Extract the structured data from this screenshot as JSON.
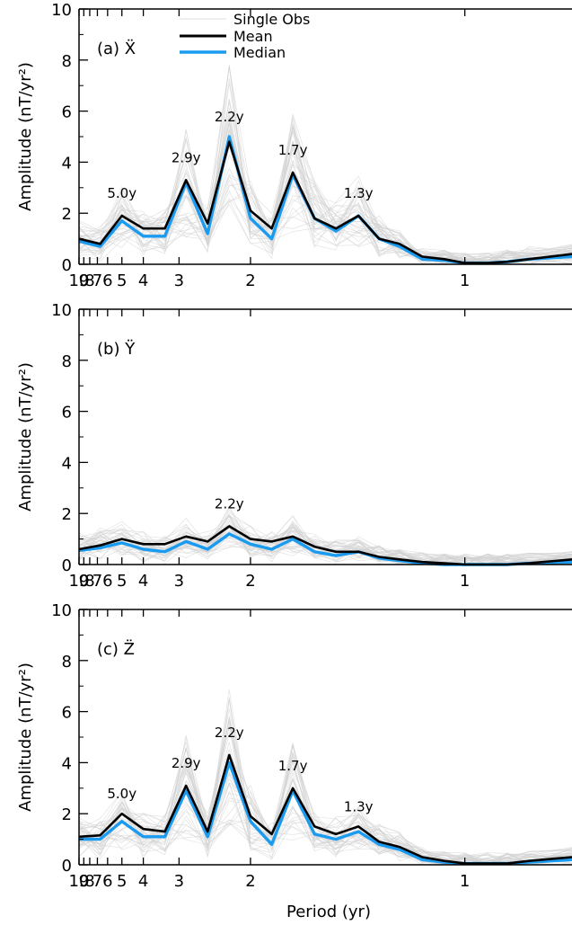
{
  "figure": {
    "xlabel": "Period (yr)",
    "legend": [
      "Single Obs",
      "Mean",
      "Median"
    ]
  },
  "colors": {
    "single": "#d0d0d0",
    "mean": "#000000",
    "median": "#1a9bf0"
  },
  "chart_data": [
    {
      "type": "line",
      "panel_label": "(a) Ẍ",
      "ylabel": "Amplitude (nT/yr²)",
      "xlabel": "",
      "x_scale": "reciprocal (frequency axis labelled in period)",
      "xlim": [
        10,
        0.8
      ],
      "ylim": [
        0,
        10
      ],
      "x_ticks": [
        10,
        9,
        8,
        7,
        6,
        5,
        4,
        3,
        2,
        1
      ],
      "y_ticks": [
        0,
        2,
        4,
        6,
        8,
        10
      ],
      "x": [
        10,
        6.7,
        5.0,
        4.0,
        3.33,
        2.86,
        2.5,
        2.22,
        2.0,
        1.82,
        1.67,
        1.54,
        1.43,
        1.33,
        1.25,
        1.18,
        1.11,
        1.05,
        1.0,
        0.95,
        0.91,
        0.87,
        0.8
      ],
      "series": [
        {
          "name": "Mean",
          "values": [
            1.0,
            0.8,
            1.9,
            1.4,
            1.4,
            3.3,
            1.6,
            4.8,
            2.1,
            1.4,
            3.6,
            1.8,
            1.4,
            1.9,
            1.0,
            0.8,
            0.3,
            0.2,
            0.05,
            0.05,
            0.1,
            0.2,
            0.4
          ]
        },
        {
          "name": "Median",
          "values": [
            0.9,
            0.7,
            1.7,
            1.1,
            1.1,
            3.2,
            1.2,
            5.0,
            1.8,
            1.0,
            3.5,
            1.8,
            1.3,
            1.9,
            1.0,
            0.7,
            0.2,
            0.15,
            0.05,
            0.05,
            0.1,
            0.2,
            0.3
          ]
        }
      ],
      "annotations": [
        {
          "text": "5.0y",
          "x": 5.0,
          "y": 2.6
        },
        {
          "text": "2.9y",
          "x": 2.86,
          "y": 4.0
        },
        {
          "text": "2.2y",
          "x": 2.22,
          "y": 5.6
        },
        {
          "text": "1.7y",
          "x": 1.67,
          "y": 4.3
        },
        {
          "text": "1.3y",
          "x": 1.33,
          "y": 2.6
        }
      ]
    },
    {
      "type": "line",
      "panel_label": "(b) Ÿ",
      "ylabel": "Amplitude (nT/yr²)",
      "xlabel": "",
      "x_scale": "reciprocal (frequency axis labelled in period)",
      "xlim": [
        10,
        0.8
      ],
      "ylim": [
        0,
        10
      ],
      "x_ticks": [
        10,
        9,
        8,
        7,
        6,
        5,
        4,
        3,
        2,
        1
      ],
      "y_ticks": [
        0,
        2,
        4,
        6,
        8,
        10
      ],
      "x": [
        10,
        6.7,
        5.0,
        4.0,
        3.33,
        2.86,
        2.5,
        2.22,
        2.0,
        1.82,
        1.67,
        1.54,
        1.43,
        1.33,
        1.25,
        1.18,
        1.11,
        1.05,
        1.0,
        0.95,
        0.91,
        0.87,
        0.8
      ],
      "series": [
        {
          "name": "Mean",
          "values": [
            0.6,
            0.75,
            1.0,
            0.8,
            0.8,
            1.1,
            0.9,
            1.5,
            1.0,
            0.9,
            1.1,
            0.7,
            0.5,
            0.5,
            0.3,
            0.2,
            0.1,
            0.05,
            0.0,
            0.0,
            0.0,
            0.05,
            0.2
          ]
        },
        {
          "name": "Median",
          "values": [
            0.55,
            0.65,
            0.85,
            0.6,
            0.5,
            0.9,
            0.6,
            1.2,
            0.8,
            0.6,
            1.0,
            0.5,
            0.35,
            0.5,
            0.25,
            0.15,
            0.05,
            0.0,
            0.0,
            0.0,
            0.0,
            0.05,
            0.1
          ]
        }
      ],
      "annotations": [
        {
          "text": "2.2y",
          "x": 2.22,
          "y": 2.2
        }
      ]
    },
    {
      "type": "line",
      "panel_label": "(c) Z̈",
      "ylabel": "Amplitude (nT/yr²)",
      "xlabel": "Period (yr)",
      "x_scale": "reciprocal (frequency axis labelled in period)",
      "xlim": [
        10,
        0.8
      ],
      "ylim": [
        0,
        10
      ],
      "x_ticks": [
        10,
        9,
        8,
        7,
        6,
        5,
        4,
        3,
        2,
        1
      ],
      "y_ticks": [
        0,
        2,
        4,
        6,
        8,
        10
      ],
      "x": [
        10,
        6.7,
        5.0,
        4.0,
        3.33,
        2.86,
        2.5,
        2.22,
        2.0,
        1.82,
        1.67,
        1.54,
        1.43,
        1.33,
        1.25,
        1.18,
        1.11,
        1.05,
        1.0,
        0.95,
        0.91,
        0.87,
        0.8
      ],
      "series": [
        {
          "name": "Mean",
          "values": [
            1.1,
            1.15,
            2.0,
            1.4,
            1.3,
            3.1,
            1.3,
            4.3,
            1.9,
            1.2,
            3.0,
            1.5,
            1.2,
            1.5,
            0.9,
            0.7,
            0.3,
            0.15,
            0.05,
            0.05,
            0.05,
            0.15,
            0.3
          ]
        },
        {
          "name": "Median",
          "values": [
            1.0,
            1.0,
            1.7,
            1.1,
            1.1,
            2.9,
            1.1,
            4.0,
            1.7,
            0.8,
            2.9,
            1.2,
            1.0,
            1.3,
            0.8,
            0.6,
            0.2,
            0.1,
            0.05,
            0.05,
            0.05,
            0.1,
            0.2
          ]
        }
      ],
      "annotations": [
        {
          "text": "5.0y",
          "x": 5.0,
          "y": 2.6
        },
        {
          "text": "2.9y",
          "x": 2.86,
          "y": 3.8
        },
        {
          "text": "2.2y",
          "x": 2.22,
          "y": 5.0
        },
        {
          "text": "1.7y",
          "x": 1.67,
          "y": 3.7
        },
        {
          "text": "1.3y",
          "x": 1.33,
          "y": 2.1
        }
      ]
    }
  ]
}
